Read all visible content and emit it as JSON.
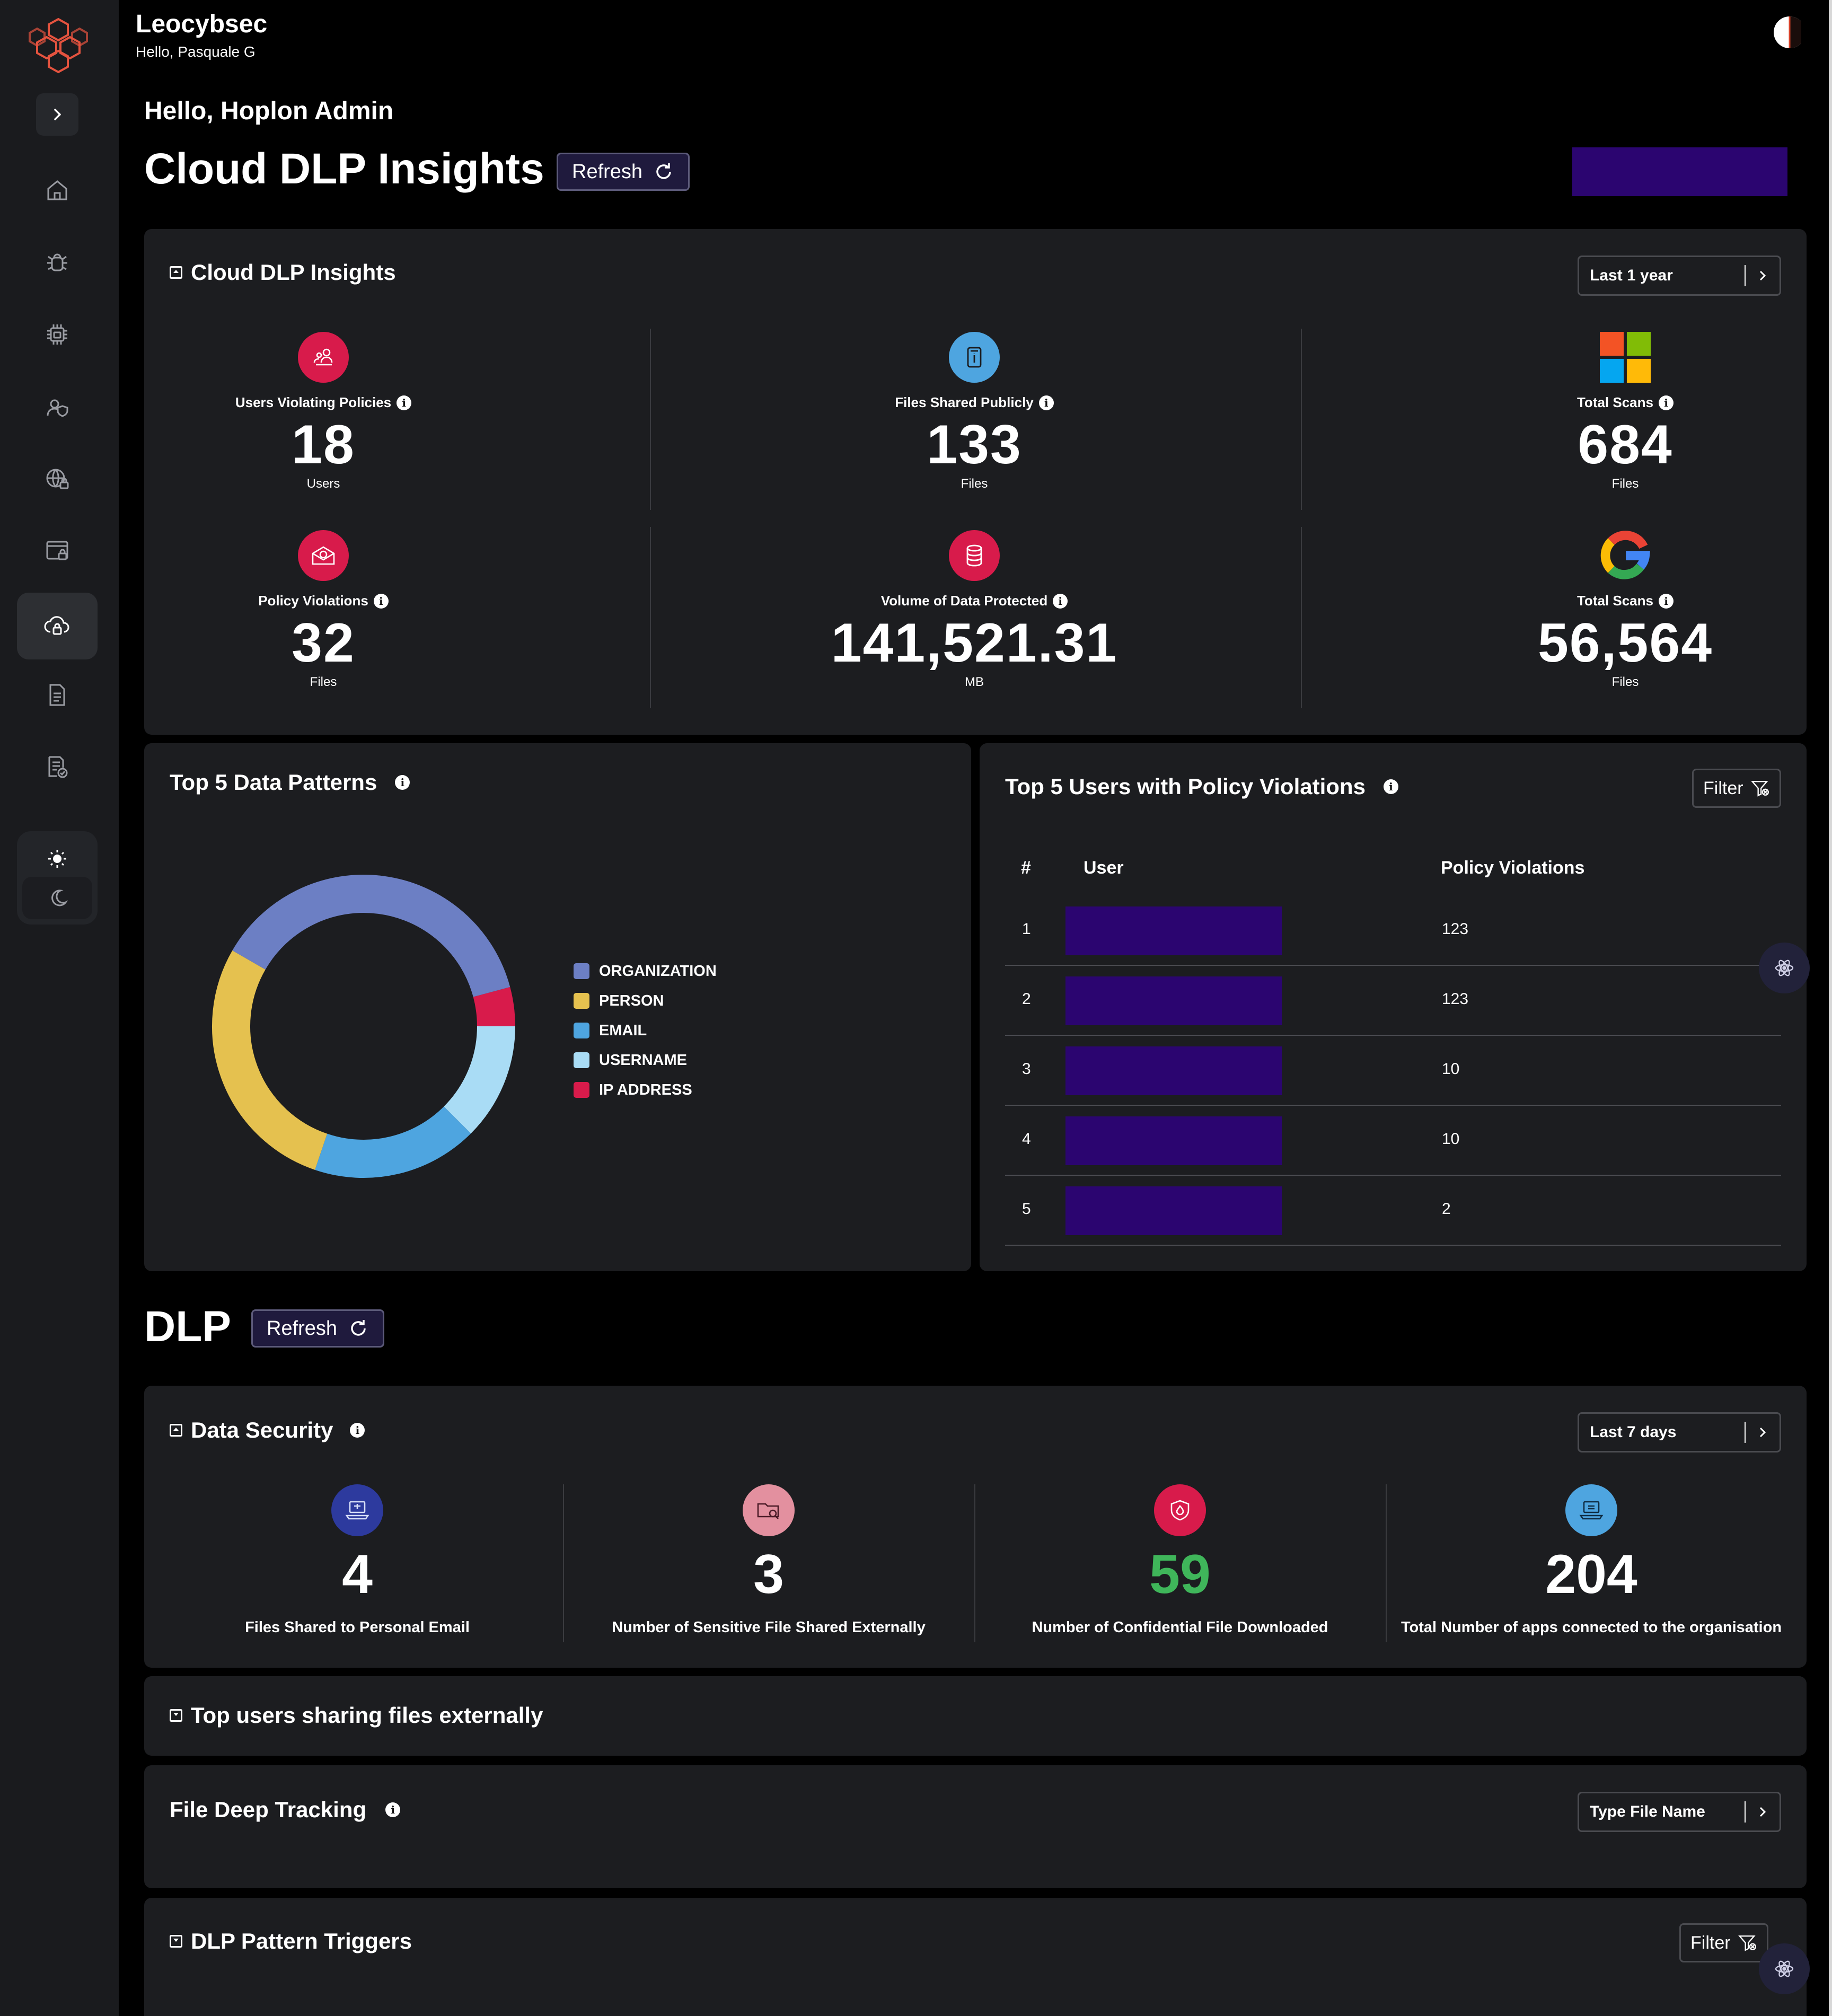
{
  "header": {
    "brand": "Leocybsec",
    "greeting": "Hello, Pasquale G"
  },
  "sidebar": {
    "items": [
      {
        "name": "home-icon"
      },
      {
        "name": "bug-icon"
      },
      {
        "name": "chip-icon"
      },
      {
        "name": "user-shield-icon"
      },
      {
        "name": "globe-lock-icon"
      },
      {
        "name": "browser-lock-icon"
      },
      {
        "name": "cloud-lock-icon",
        "active": true
      },
      {
        "name": "document-icon"
      },
      {
        "name": "document-check-icon"
      }
    ]
  },
  "page": {
    "hello": "Hello, Hoplon Admin",
    "title": "Cloud DLP Insights",
    "refresh_label": "Refresh"
  },
  "insights": {
    "title": "Cloud DLP Insights",
    "range": "Last 1 year",
    "stats": [
      {
        "label": "Users Violating Policies",
        "value": "18",
        "unit": "Users"
      },
      {
        "label": "Files Shared Publicly",
        "value": "133",
        "unit": "Files"
      },
      {
        "label": "Total Scans",
        "value": "684",
        "unit": "Files"
      },
      {
        "label": "Policy Violations",
        "value": "32",
        "unit": "Files"
      },
      {
        "label": "Volume of Data Protected",
        "value": "141,521.31",
        "unit": "MB"
      },
      {
        "label": "Total Scans",
        "value": "56,564",
        "unit": "Files"
      }
    ]
  },
  "patterns": {
    "title": "Top 5 Data Patterns",
    "chart_data": {
      "type": "pie",
      "title": "Top 5 Data Patterns",
      "categories": [
        "ORGANIZATION",
        "PERSON",
        "EMAIL",
        "USERNAME",
        "IP ADDRESS"
      ],
      "values": [
        36,
        27,
        17,
        12,
        4
      ],
      "colors": [
        "#6c7fc4",
        "#e5c14f",
        "#4ea5e0",
        "#a9dcf5",
        "#d81b4b"
      ]
    }
  },
  "violations": {
    "title": "Top 5 Users with Policy Violations",
    "filter_label": "Filter",
    "columns": [
      "#",
      "User",
      "Policy Violations"
    ],
    "rows": [
      {
        "rank": "1",
        "count": "123"
      },
      {
        "rank": "2",
        "count": "123"
      },
      {
        "rank": "3",
        "count": "10"
      },
      {
        "rank": "4",
        "count": "10"
      },
      {
        "rank": "5",
        "count": "2"
      }
    ]
  },
  "dlp": {
    "title": "DLP",
    "refresh_label": "Refresh"
  },
  "data_security": {
    "title": "Data Security",
    "range": "Last 7 days",
    "stats": [
      {
        "value": "4",
        "label": "Files Shared to Personal Email",
        "color": "#ffffff"
      },
      {
        "value": "3",
        "label": "Number of Sensitive File Shared Externally",
        "color": "#ffffff"
      },
      {
        "value": "59",
        "label": "Number of Confidential File Downloaded",
        "color": "#3fb65a"
      },
      {
        "value": "204",
        "label": "Total Number of apps connected to the organisation",
        "color": "#ffffff"
      }
    ]
  },
  "top_users": {
    "title": "Top users sharing files externally"
  },
  "deep_tracking": {
    "title": "File Deep Tracking",
    "input_label": "Type File Name"
  },
  "pattern_triggers": {
    "title": "DLP Pattern Triggers",
    "filter_label": "Filter"
  }
}
